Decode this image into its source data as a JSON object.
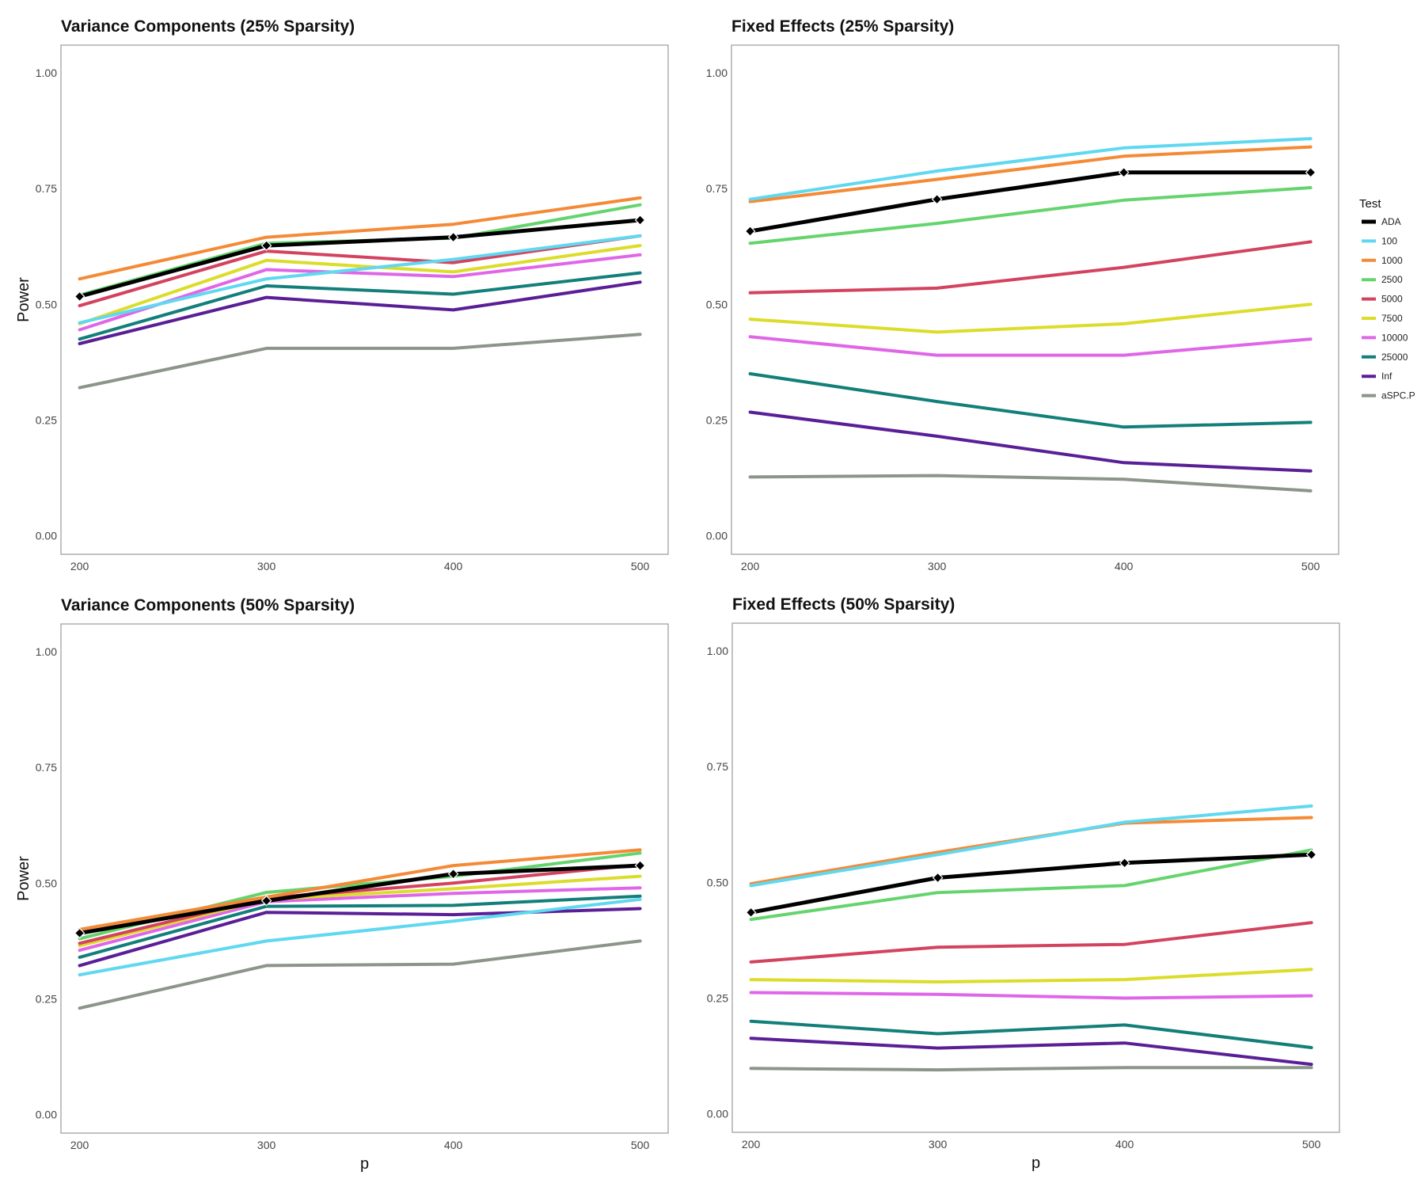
{
  "chart_data": [
    {
      "type": "line",
      "title": "Variance Components (25% Sparsity)",
      "xlabel": "",
      "ylabel": "Power",
      "x": [
        200,
        300,
        400,
        500
      ],
      "xlim": [
        190,
        515
      ],
      "ylim": [
        -0.04,
        1.06
      ],
      "xticks": [
        "200",
        "300",
        "400",
        "500"
      ],
      "yticks": [
        "0.00",
        "0.25",
        "0.50",
        "0.75",
        "1.00"
      ],
      "series": [
        {
          "name": "aSPC.P",
          "values": [
            0.32,
            0.405,
            0.405,
            0.435
          ]
        },
        {
          "name": "Inf",
          "values": [
            0.415,
            0.515,
            0.488,
            0.548
          ]
        },
        {
          "name": "25000",
          "values": [
            0.425,
            0.54,
            0.522,
            0.568
          ]
        },
        {
          "name": "10000",
          "values": [
            0.445,
            0.575,
            0.56,
            0.607
          ]
        },
        {
          "name": "7500",
          "values": [
            0.458,
            0.595,
            0.57,
            0.627
          ]
        },
        {
          "name": "5000",
          "values": [
            0.497,
            0.615,
            0.59,
            0.648
          ]
        },
        {
          "name": "2500",
          "values": [
            0.52,
            0.632,
            0.643,
            0.715
          ]
        },
        {
          "name": "1000",
          "values": [
            0.555,
            0.645,
            0.673,
            0.73
          ]
        },
        {
          "name": "100",
          "values": [
            0.46,
            0.555,
            0.597,
            0.648
          ]
        },
        {
          "name": "ADA",
          "values": [
            0.517,
            0.627,
            0.645,
            0.682
          ],
          "markers": true
        }
      ]
    },
    {
      "type": "line",
      "title": "Fixed Effects (25% Sparsity)",
      "xlabel": "",
      "ylabel": "",
      "x": [
        200,
        300,
        400,
        500
      ],
      "xlim": [
        190,
        515
      ],
      "ylim": [
        -0.04,
        1.06
      ],
      "xticks": [
        "200",
        "300",
        "400",
        "500"
      ],
      "yticks": [
        "0.00",
        "0.25",
        "0.50",
        "0.75",
        "1.00"
      ],
      "series": [
        {
          "name": "aSPC.P",
          "values": [
            0.127,
            0.13,
            0.122,
            0.097
          ]
        },
        {
          "name": "Inf",
          "values": [
            0.267,
            0.215,
            0.158,
            0.14
          ]
        },
        {
          "name": "25000",
          "values": [
            0.35,
            0.29,
            0.235,
            0.245
          ]
        },
        {
          "name": "10000",
          "values": [
            0.43,
            0.39,
            0.39,
            0.425
          ]
        },
        {
          "name": "7500",
          "values": [
            0.468,
            0.44,
            0.458,
            0.5
          ]
        },
        {
          "name": "5000",
          "values": [
            0.525,
            0.535,
            0.58,
            0.635
          ]
        },
        {
          "name": "2500",
          "values": [
            0.632,
            0.675,
            0.725,
            0.752
          ]
        },
        {
          "name": "1000",
          "values": [
            0.722,
            0.77,
            0.82,
            0.84
          ]
        },
        {
          "name": "100",
          "values": [
            0.727,
            0.788,
            0.838,
            0.858
          ]
        },
        {
          "name": "ADA",
          "values": [
            0.658,
            0.727,
            0.785,
            0.785
          ],
          "markers": true
        }
      ]
    },
    {
      "type": "line",
      "title": "Variance Components (50% Sparsity)",
      "xlabel": "p",
      "ylabel": "Power",
      "x": [
        200,
        300,
        400,
        500
      ],
      "xlim": [
        190,
        515
      ],
      "ylim": [
        -0.04,
        1.06
      ],
      "xticks": [
        "200",
        "300",
        "400",
        "500"
      ],
      "yticks": [
        "0.00",
        "0.25",
        "0.50",
        "0.75",
        "1.00"
      ],
      "series": [
        {
          "name": "aSPC.P",
          "values": [
            0.23,
            0.322,
            0.325,
            0.375
          ]
        },
        {
          "name": "Inf",
          "values": [
            0.322,
            0.437,
            0.432,
            0.445
          ]
        },
        {
          "name": "25000",
          "values": [
            0.34,
            0.45,
            0.452,
            0.472
          ]
        },
        {
          "name": "10000",
          "values": [
            0.355,
            0.46,
            0.478,
            0.49
          ]
        },
        {
          "name": "7500",
          "values": [
            0.365,
            0.465,
            0.488,
            0.515
          ]
        },
        {
          "name": "5000",
          "values": [
            0.37,
            0.468,
            0.5,
            0.54
          ]
        },
        {
          "name": "2500",
          "values": [
            0.38,
            0.48,
            0.515,
            0.565
          ]
        },
        {
          "name": "1000",
          "values": [
            0.4,
            0.47,
            0.538,
            0.572
          ]
        },
        {
          "name": "100",
          "values": [
            0.302,
            0.375,
            0.418,
            0.465
          ]
        },
        {
          "name": "ADA",
          "values": [
            0.392,
            0.462,
            0.52,
            0.538
          ],
          "markers": true
        }
      ]
    },
    {
      "type": "line",
      "title": "Fixed Effects (50% Sparsity)",
      "xlabel": "p",
      "ylabel": "",
      "x": [
        200,
        300,
        400,
        500
      ],
      "xlim": [
        190,
        515
      ],
      "ylim": [
        -0.04,
        1.06
      ],
      "xticks": [
        "200",
        "300",
        "400",
        "500"
      ],
      "yticks": [
        "0.00",
        "0.25",
        "0.50",
        "0.75",
        "1.00"
      ],
      "series": [
        {
          "name": "aSPC.P",
          "values": [
            0.098,
            0.095,
            0.1,
            0.1
          ]
        },
        {
          "name": "Inf",
          "values": [
            0.163,
            0.142,
            0.153,
            0.107
          ]
        },
        {
          "name": "25000",
          "values": [
            0.2,
            0.173,
            0.192,
            0.143
          ]
        },
        {
          "name": "10000",
          "values": [
            0.262,
            0.258,
            0.25,
            0.255
          ]
        },
        {
          "name": "7500",
          "values": [
            0.29,
            0.285,
            0.29,
            0.312
          ]
        },
        {
          "name": "5000",
          "values": [
            0.328,
            0.36,
            0.366,
            0.413
          ]
        },
        {
          "name": "2500",
          "values": [
            0.42,
            0.478,
            0.493,
            0.57
          ]
        },
        {
          "name": "1000",
          "values": [
            0.497,
            0.565,
            0.628,
            0.64
          ]
        },
        {
          "name": "100",
          "values": [
            0.493,
            0.56,
            0.63,
            0.665
          ]
        },
        {
          "name": "ADA",
          "values": [
            0.435,
            0.51,
            0.542,
            0.56
          ],
          "markers": true
        }
      ]
    }
  ],
  "legend": {
    "title": "Test",
    "entries": [
      "ADA",
      "100",
      "1000",
      "2500",
      "5000",
      "7500",
      "10000",
      "25000",
      "Inf",
      "aSPC.P"
    ]
  },
  "colors": {
    "ADA": "#000000",
    "100": "#5fd8f0",
    "1000": "#f58a36",
    "2500": "#66d46e",
    "5000": "#d3435f",
    "7500": "#dcdc2a",
    "10000": "#e066e8",
    "25000": "#137f7a",
    "Inf": "#5a1e96",
    "aSPC.P": "#8c9589"
  }
}
